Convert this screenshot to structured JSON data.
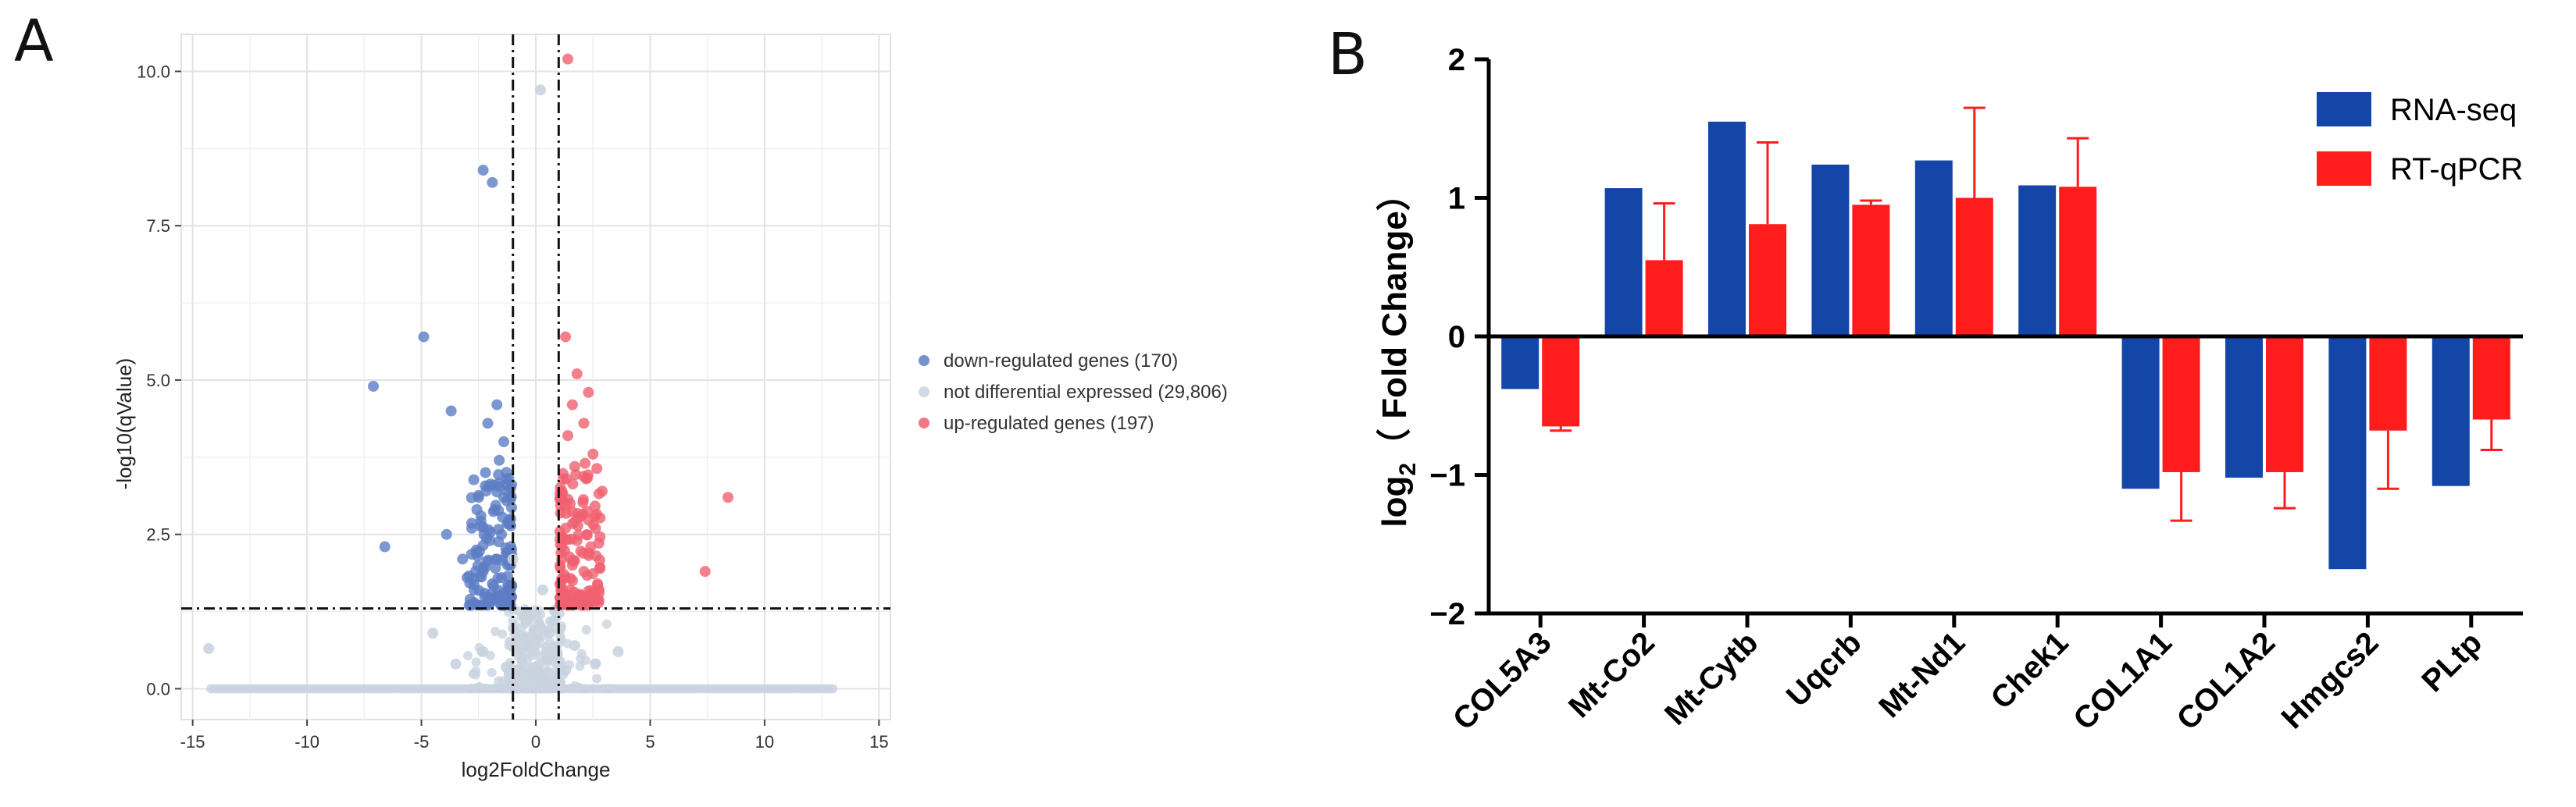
{
  "panels": {
    "a_label": "A",
    "b_label": "B"
  },
  "chart_data": [
    {
      "type": "scatter",
      "name": "volcano-plot",
      "xlabel": "log2FoldChange",
      "ylabel": "-log10(qValue)",
      "xlim": [
        -15.5,
        15.5
      ],
      "ylim": [
        -0.5,
        10.6
      ],
      "x_ticks": [
        -15,
        -10,
        -5,
        0,
        5,
        10,
        15
      ],
      "x_tick_labels": [
        "-15",
        "-10",
        "-5",
        "0",
        "5",
        "10",
        "15"
      ],
      "y_ticks": [
        0,
        2.5,
        5,
        7.5,
        10
      ],
      "y_tick_labels": [
        "0.0",
        "2.5",
        "5.0",
        "7.5",
        "10.0"
      ],
      "grid": true,
      "thresholds": {
        "fold_change_lines": [
          -1,
          1
        ],
        "qvalue_line": 1.3
      },
      "legend": {
        "position": "right",
        "entries": [
          {
            "label": "down-regulated genes (170)",
            "color": "#5c7dc4"
          },
          {
            "label": "not differential expressed (29,806)",
            "color": "#c9d3df"
          },
          {
            "label": "up-regulated genes (197)",
            "color": "#f06070"
          }
        ]
      },
      "series": [
        {
          "name": "down-regulated genes (170)",
          "color": "#5c7dc4",
          "points": [
            [
              -2.3,
              8.4
            ],
            [
              -1.9,
              8.2
            ],
            [
              -4.9,
              5.7
            ],
            [
              -7.1,
              4.9
            ],
            [
              -6.6,
              2.3
            ],
            [
              -3.7,
              4.5
            ],
            [
              -3.9,
              2.5
            ],
            [
              -1.7,
              4.6
            ],
            [
              -2.1,
              4.3
            ],
            [
              -1.4,
              4.0
            ],
            [
              -1.6,
              3.7
            ],
            [
              -2.2,
              3.5
            ],
            [
              -1.3,
              3.3
            ],
            [
              -2.5,
              3.1
            ],
            [
              -1.8,
              2.9
            ],
            [
              -1.2,
              2.7
            ],
            [
              -2.8,
              2.6
            ],
            [
              -1.5,
              2.5
            ],
            [
              -2.0,
              2.4
            ],
            [
              -1.3,
              2.2
            ],
            [
              -2.6,
              2.2
            ],
            [
              -1.7,
              2.1
            ],
            [
              -1.1,
              2.0
            ],
            [
              -2.3,
              1.9
            ],
            [
              -1.5,
              1.8
            ],
            [
              -3.0,
              1.8
            ],
            [
              -1.9,
              1.7
            ],
            [
              -1.2,
              1.6
            ],
            [
              -2.7,
              1.6
            ],
            [
              -1.6,
              1.5
            ],
            [
              -1.1,
              1.45
            ],
            [
              -2.1,
              1.4
            ],
            [
              -1.4,
              1.35
            ],
            [
              -3.2,
              2.1
            ],
            [
              -2.4,
              2.8
            ]
          ]
        },
        {
          "name": "not differential expressed (29,806)",
          "color": "#c9d3df",
          "points": [
            [
              -14.3,
              0.65
            ],
            [
              -4.5,
              0.9
            ],
            [
              -2.3,
              0.6
            ],
            [
              -1.0,
              2.1
            ],
            [
              0.3,
              1.6
            ],
            [
              0.2,
              1.0
            ],
            [
              -0.4,
              1.2
            ],
            [
              0.6,
              0.9
            ],
            [
              1.7,
              0.7
            ],
            [
              3.6,
              0.6
            ],
            [
              -3.5,
              0.4
            ],
            [
              2.6,
              0.4
            ],
            [
              -0.8,
              0.3
            ],
            [
              0.9,
              0.2
            ],
            [
              0.2,
              9.7
            ],
            [
              -0.3,
              0.7
            ],
            [
              -0.6,
              0.5
            ],
            [
              0.5,
              0.45
            ],
            [
              -1.3,
              0.35
            ],
            [
              1.3,
              0.3
            ],
            [
              0.0,
              0.8
            ],
            [
              -0.2,
              0.25
            ],
            [
              0.4,
              0.15
            ],
            [
              -0.9,
              0.9
            ],
            [
              0.8,
              1.1
            ]
          ]
        },
        {
          "name": "up-regulated genes (197)",
          "color": "#f06070",
          "points": [
            [
              1.4,
              10.2
            ],
            [
              1.3,
              5.7
            ],
            [
              1.8,
              5.1
            ],
            [
              2.3,
              4.8
            ],
            [
              1.6,
              4.6
            ],
            [
              2.1,
              4.3
            ],
            [
              1.4,
              4.1
            ],
            [
              2.5,
              3.8
            ],
            [
              1.7,
              3.6
            ],
            [
              1.2,
              3.4
            ],
            [
              2.9,
              3.2
            ],
            [
              1.5,
              3.0
            ],
            [
              2.0,
              2.8
            ],
            [
              1.3,
              2.6
            ],
            [
              1.8,
              2.4
            ],
            [
              2.4,
              2.3
            ],
            [
              1.1,
              2.2
            ],
            [
              1.6,
              2.0
            ],
            [
              2.1,
              1.9
            ],
            [
              1.3,
              1.8
            ],
            [
              2.7,
              1.7
            ],
            [
              1.5,
              1.6
            ],
            [
              1.9,
              1.5
            ],
            [
              1.2,
              1.45
            ],
            [
              2.3,
              1.4
            ],
            [
              8.4,
              3.1
            ],
            [
              7.4,
              1.9
            ],
            [
              1.7,
              2.7
            ],
            [
              2.2,
              3.4
            ],
            [
              1.4,
              1.35
            ]
          ]
        }
      ]
    },
    {
      "type": "bar",
      "name": "fold-change-bar-chart",
      "title": "",
      "xlabel": "",
      "ylabel_main": "log",
      "ylabel_sub": "2",
      "ylabel_rest": "（ Fold Change）",
      "ylim": [
        -2,
        2
      ],
      "y_ticks": [
        -2,
        -1,
        0,
        1,
        2
      ],
      "y_tick_labels": [
        "−2",
        "−1",
        "0",
        "1",
        "2"
      ],
      "categories": [
        "COL5A3",
        "Mt-Co2",
        "Mt-Cytb",
        "Uqcrb",
        "Mt-Nd1",
        "Chek1",
        "COL1A1",
        "COL1A2",
        "Hmgcs2",
        "PLtp"
      ],
      "legend": {
        "position": "top-right"
      },
      "series": [
        {
          "name": "RNA-seq",
          "color": "#1446a8",
          "values": [
            -0.38,
            1.07,
            1.55,
            1.24,
            1.27,
            1.09,
            -1.1,
            -1.02,
            -1.68,
            -1.08
          ]
        },
        {
          "name": "RT-qPCR",
          "color": "#ff1c1c",
          "values": [
            -0.65,
            0.55,
            0.81,
            0.95,
            1.0,
            1.08,
            -0.98,
            -0.98,
            -0.68,
            -0.6
          ],
          "error_upper": [
            -0.62,
            0.96,
            1.4,
            0.98,
            1.65,
            1.43,
            -0.98,
            -0.98,
            -0.68,
            -0.6
          ],
          "error_lower": [
            -0.68,
            0.55,
            0.81,
            0.95,
            1.0,
            1.08,
            -1.33,
            -1.24,
            -1.1,
            -0.82
          ]
        }
      ]
    }
  ]
}
